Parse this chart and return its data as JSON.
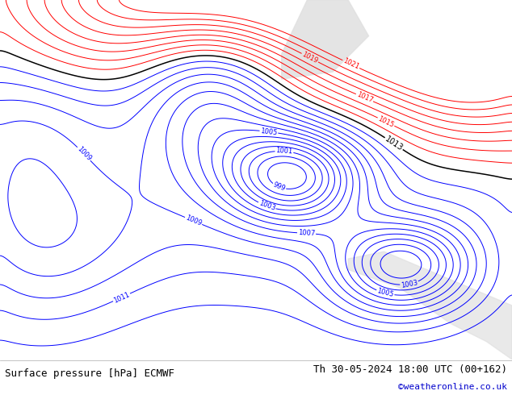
{
  "title_left": "Surface pressure [hPa] ECMWF",
  "title_right": "Th 30-05-2024 18:00 UTC (00+162)",
  "credit": "©weatheronline.co.uk",
  "bg_color": "#c8e8b0",
  "footer_bg": "#ffffff",
  "footer_text_color": "#000000",
  "credit_color": "#0000cc",
  "contour_black_color": "#000000",
  "contour_blue_color": "#0000ff",
  "contour_red_color": "#ff0000",
  "label_fontsize": 6,
  "footer_fontsize": 9,
  "figsize": [
    6.34,
    4.9
  ],
  "dpi": 100
}
